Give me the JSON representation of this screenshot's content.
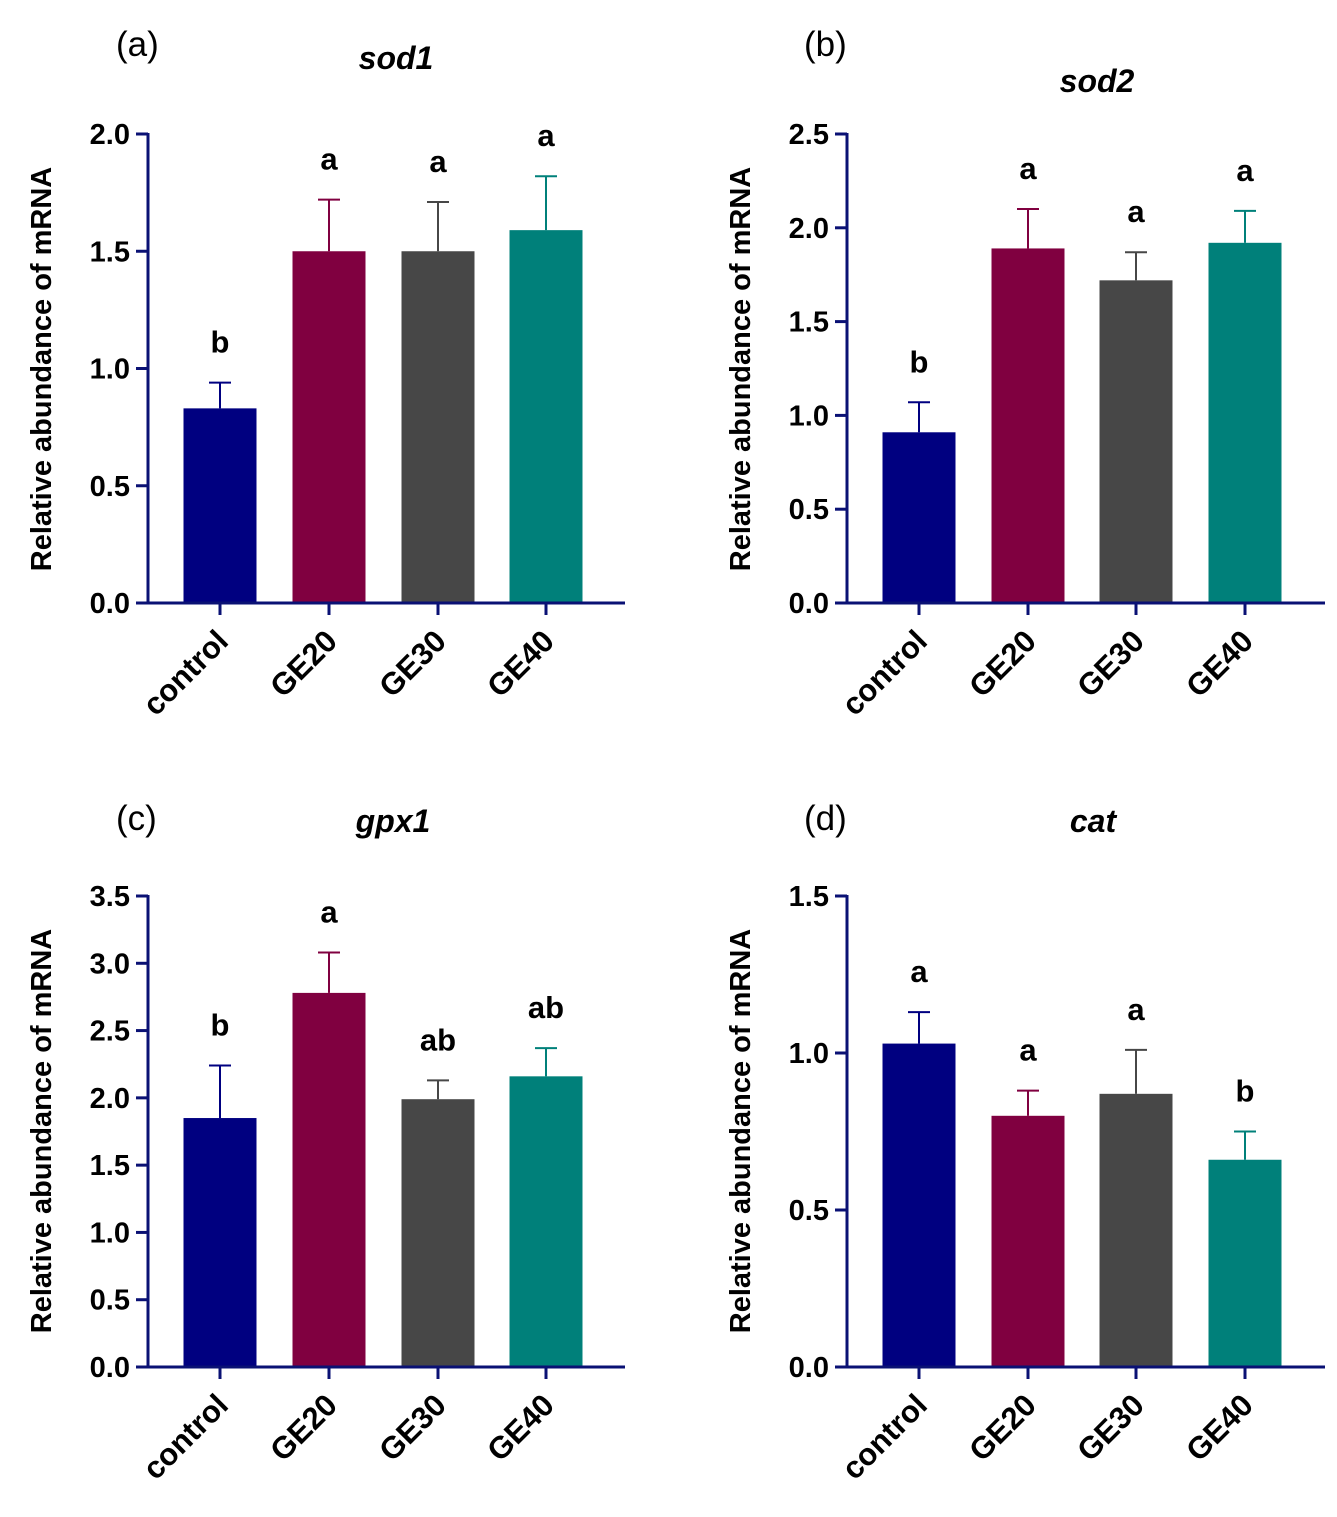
{
  "colors": {
    "axis": "#0a1174",
    "series": [
      "#000080",
      "#800040",
      "#474747",
      "#00807a"
    ]
  },
  "chart_data": [
    {
      "type": "bar",
      "panel": "(a)",
      "title": "sod1",
      "xlabel": "",
      "ylabel": "Relative abundance of mRNA",
      "categories": [
        "control",
        "GE20",
        "GE30",
        "GE40"
      ],
      "values": [
        0.83,
        1.5,
        1.5,
        1.59
      ],
      "errors": [
        0.11,
        0.22,
        0.21,
        0.23
      ],
      "significance": [
        "b",
        "a",
        "a",
        "a"
      ],
      "ylim": [
        0,
        2.0
      ],
      "yticks": [
        "0.0",
        "0.5",
        "1.0",
        "1.5",
        "2.0"
      ],
      "grid": false
    },
    {
      "type": "bar",
      "panel": "(b)",
      "title": "sod2",
      "xlabel": "",
      "ylabel": "Relative abundance of mRNA",
      "categories": [
        "control",
        "GE20",
        "GE30",
        "GE40"
      ],
      "values": [
        0.91,
        1.89,
        1.72,
        1.92
      ],
      "errors": [
        0.16,
        0.21,
        0.15,
        0.17
      ],
      "significance": [
        "b",
        "a",
        "a",
        "a"
      ],
      "ylim": [
        0,
        2.5
      ],
      "yticks": [
        "0.0",
        "0.5",
        "1.0",
        "1.5",
        "2.0",
        "2.5"
      ],
      "grid": false
    },
    {
      "type": "bar",
      "panel": "(c)",
      "title": "gpx1",
      "xlabel": "",
      "ylabel": "Relative abundance of mRNA",
      "categories": [
        "control",
        "GE20",
        "GE30",
        "GE40"
      ],
      "values": [
        1.85,
        2.78,
        1.99,
        2.16
      ],
      "errors": [
        0.39,
        0.3,
        0.14,
        0.21
      ],
      "significance": [
        "b",
        "a",
        "ab",
        "ab"
      ],
      "ylim": [
        0,
        3.5
      ],
      "yticks": [
        "0.0",
        "0.5",
        "1.0",
        "1.5",
        "2.0",
        "2.5",
        "3.0",
        "3.5"
      ],
      "grid": false
    },
    {
      "type": "bar",
      "panel": "(d)",
      "title": "cat",
      "xlabel": "",
      "ylabel": "Relative abundance of mRNA",
      "categories": [
        "control",
        "GE20",
        "GE30",
        "GE40"
      ],
      "values": [
        1.03,
        0.8,
        0.87,
        0.66
      ],
      "errors": [
        0.1,
        0.08,
        0.14,
        0.09
      ],
      "significance": [
        "a",
        "a",
        "a",
        "b"
      ],
      "ylim": [
        0,
        1.5
      ],
      "yticks": [
        "0.0",
        "0.5",
        "1.0",
        "1.5"
      ],
      "grid": false
    }
  ]
}
